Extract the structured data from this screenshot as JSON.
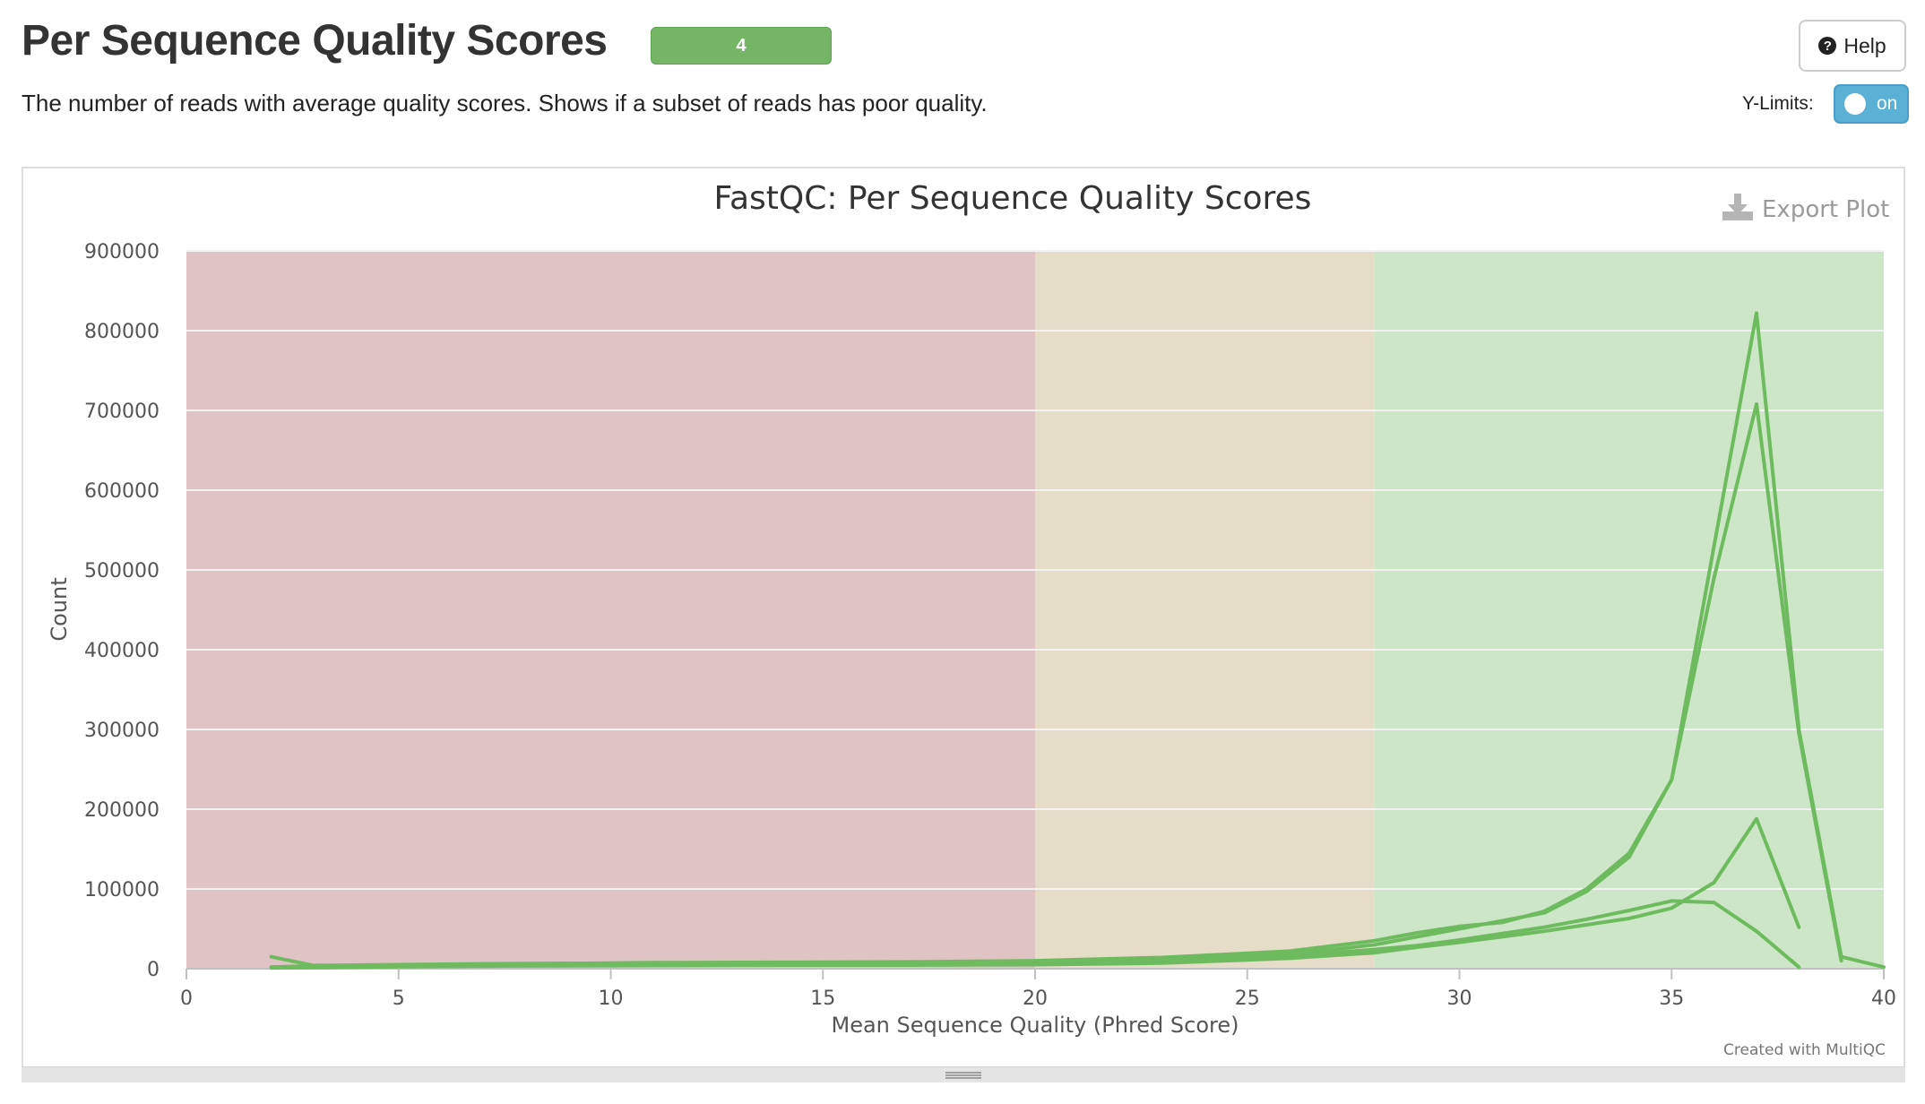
{
  "header": {
    "title": "Per Sequence Quality Scores",
    "badge": "4",
    "description": "The number of reads with average quality scores. Shows if a subset of reads has poor quality.",
    "help_label": "Help",
    "ylimits_label": "Y-Limits:",
    "ylimits_toggle": "on"
  },
  "plot": {
    "export_label": "Export Plot",
    "credit": "Created with MultiQC"
  },
  "colors": {
    "line": "#6dbb5e",
    "band_fail": "#e0c3c5",
    "band_warn": "#e5ddc8",
    "band_pass": "#cde6c7",
    "badge": "#74b566",
    "toggle": "#5bb0d6"
  },
  "chart_data": {
    "type": "line",
    "title": "FastQC: Per Sequence Quality Scores",
    "xlabel": "Mean Sequence Quality (Phred Score)",
    "ylabel": "Count",
    "xlim": [
      0,
      40
    ],
    "ylim": [
      0,
      900000
    ],
    "xticks": [
      0,
      5,
      10,
      15,
      20,
      25,
      30,
      35,
      40
    ],
    "yticks": [
      0,
      100000,
      200000,
      300000,
      400000,
      500000,
      600000,
      700000,
      800000,
      900000
    ],
    "grid": true,
    "legend": "none",
    "bands": [
      {
        "from": 0,
        "to": 20,
        "status": "fail"
      },
      {
        "from": 20,
        "to": 28,
        "status": "warn"
      },
      {
        "from": 28,
        "to": 40,
        "status": "pass"
      }
    ],
    "series": [
      {
        "x": [
          2,
          3,
          5,
          8,
          11,
          14,
          17,
          20,
          23,
          26,
          28,
          29,
          30,
          31,
          32,
          33,
          34,
          35,
          36,
          37,
          38,
          39,
          40
        ],
        "values": [
          2000,
          3000,
          4000,
          6000,
          7500,
          8000,
          8500,
          10000,
          14000,
          22000,
          35000,
          45000,
          53000,
          58000,
          72000,
          100000,
          145000,
          237000,
          530000,
          822000,
          300000,
          15000,
          2000
        ]
      },
      {
        "x": [
          2,
          3,
          5,
          8,
          11,
          14,
          17,
          20,
          23,
          26,
          28,
          29,
          30,
          31,
          32,
          33,
          34,
          35,
          36,
          37,
          38,
          39
        ],
        "values": [
          15000,
          4000,
          5000,
          6500,
          7000,
          7500,
          8000,
          9000,
          12000,
          18000,
          30000,
          40000,
          50000,
          60000,
          70000,
          97000,
          140000,
          237000,
          490000,
          708000,
          295000,
          10000
        ]
      },
      {
        "x": [
          2,
          3,
          5,
          8,
          11,
          14,
          17,
          20,
          23,
          26,
          28,
          29,
          30,
          31,
          32,
          33,
          34,
          35,
          36,
          37,
          38
        ],
        "values": [
          2000,
          3500,
          4500,
          6000,
          7000,
          7500,
          8000,
          9000,
          11000,
          16000,
          24000,
          29000,
          36000,
          44000,
          52000,
          62000,
          73000,
          85000,
          83000,
          47000,
          2000
        ]
      },
      {
        "x": [
          2,
          3,
          5,
          8,
          11,
          14,
          17,
          20,
          23,
          26,
          28,
          29,
          30,
          31,
          32,
          33,
          34,
          35,
          36,
          37,
          38
        ],
        "values": [
          1000,
          1500,
          2500,
          3500,
          4000,
          4500,
          4500,
          5000,
          7000,
          13000,
          20000,
          27000,
          33000,
          40000,
          47000,
          55000,
          63000,
          76000,
          108000,
          188000,
          52000
        ]
      }
    ]
  }
}
